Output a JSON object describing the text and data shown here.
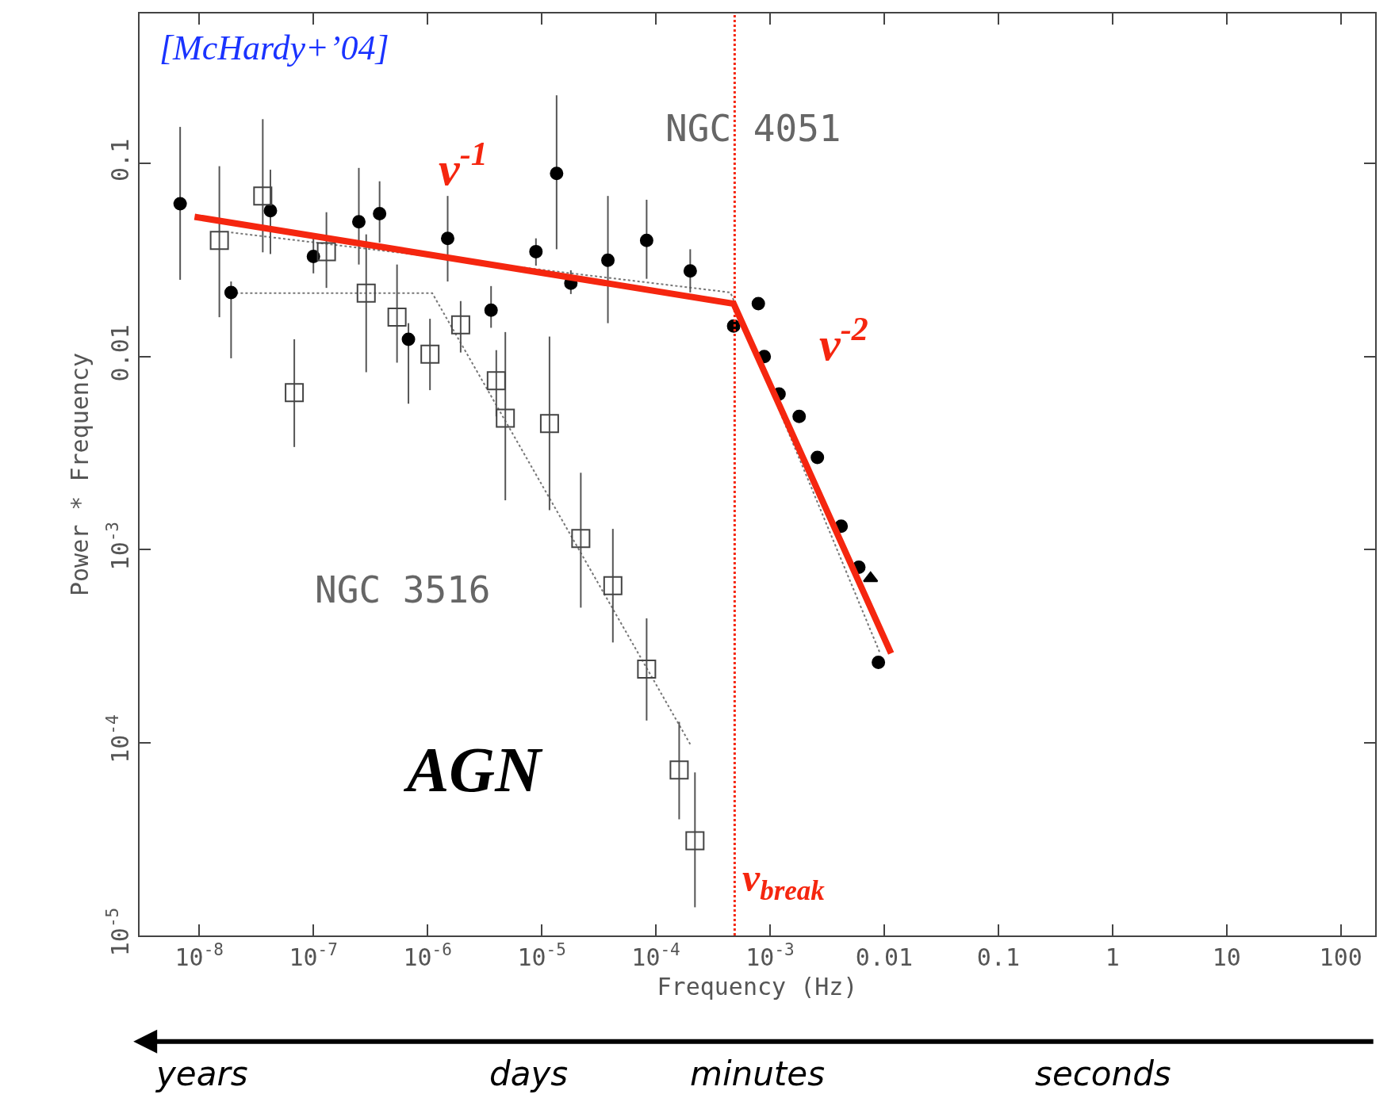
{
  "chart_data": {
    "type": "scatter",
    "xlabel": "Frequency (Hz)",
    "ylabel": "Power * Frequency",
    "log": "xy",
    "xlim": [
      3e-09,
      200
    ],
    "ylim": [
      1e-05,
      0.6
    ],
    "xticks": [
      {
        "value": 1e-08,
        "label": "10$^{-8}$"
      },
      {
        "value": 1e-07,
        "label": "10$^{-7}$"
      },
      {
        "value": 1e-06,
        "label": "10$^{-6}$"
      },
      {
        "value": 1e-05,
        "label": "10$^{-5}$"
      },
      {
        "value": 0.0001,
        "label": "10$^{-4}$"
      },
      {
        "value": 0.001,
        "label": "10$^{-3}$"
      },
      0.01,
      0.1,
      1,
      10,
      100
    ],
    "yticks": [
      {
        "value": 1e-05,
        "label": "10$^{-5}$"
      },
      {
        "value": 0.0001,
        "label": "10$^{-4}$"
      },
      {
        "value": 0.001,
        "label": "10$^{-3}$"
      },
      0.01,
      0.1
    ],
    "series": [
      {
        "type": "line",
        "line_style": "dotted",
        "color": "#777777",
        "marker": "none",
        "x": [
          1.9e-08,
          1.1e-06,
          0.0002
        ],
        "values": [
          0.0213,
          0.0213,
          9.8e-05
        ]
      },
      {
        "type": "line",
        "line_style": "dotted",
        "color": "#777777",
        "marker": "none",
        "x": [
          1.9e-08,
          0.00045,
          0.0091
        ],
        "values": [
          0.044,
          0.0215,
          0.000295
        ]
      },
      {
        "marker": "circle",
        "color": "#000000",
        "x": [
          6.8e-09,
          1.9e-08,
          4.2e-08,
          1e-07,
          2.5e-07,
          3.8e-07,
          6.8e-07,
          1.5e-06,
          3.6e-06,
          8.9e-06,
          1.35e-05,
          1.8e-05,
          3.8e-05,
          8.3e-05,
          0.0002,
          0.00048,
          0.00079,
          0.00089,
          0.0012,
          0.0018,
          0.0026,
          0.0042,
          0.006,
          0.0089
        ],
        "values": [
          0.062,
          0.0215,
          0.057,
          0.033,
          0.05,
          0.055,
          0.0123,
          0.041,
          0.0174,
          0.035,
          0.089,
          0.024,
          0.0316,
          0.04,
          0.0278,
          0.0144,
          0.0188,
          0.01,
          0.0064,
          0.0049,
          0.003,
          0.00132,
          0.00081,
          0.00026
        ],
        "errors": [
          [
            0.025,
            0.155
          ],
          [
            0.0098,
            0.0245
          ],
          [
            0.034,
            0.093
          ],
          [
            0.027,
            0.041
          ],
          [
            0.03,
            0.095
          ],
          [
            0.039,
            0.081
          ],
          [
            0.0057,
            0.0149
          ],
          [
            0.0245,
            0.068
          ],
          [
            0.0141,
            0.0232
          ],
          [
            0.0296,
            0.041
          ],
          [
            0.036,
            0.226
          ],
          [
            0.0211,
            0.028
          ],
          [
            0.0149,
            0.068
          ],
          [
            0.0253,
            0.065
          ],
          [
            0.0215,
            0.036
          ],
          null,
          null,
          null,
          null,
          null,
          null,
          null,
          null,
          null
        ]
      },
      {
        "marker": "triangle",
        "color": "#000000",
        "x": [
          0.0076
        ],
        "values": [
          0.00071
        ]
      },
      {
        "marker": "square",
        "color": "#444444",
        "x": [
          1.5e-08,
          3.6e-08,
          6.8e-08,
          1.3e-07,
          2.9e-07,
          5.4e-07,
          1.05e-06,
          1.95e-06,
          4e-06,
          4.8e-06,
          1.17e-05,
          2.2e-05,
          4.2e-05,
          8.3e-05,
          0.00016,
          0.00022
        ],
        "values": [
          0.04,
          0.068,
          0.0065,
          0.035,
          0.0213,
          0.016,
          0.0103,
          0.0146,
          0.0075,
          0.0048,
          0.0045,
          0.00114,
          0.00065,
          0.00024,
          7.2e-05,
          3.1e-05
        ],
        "errors": [
          [
            0.016,
            0.097
          ],
          [
            0.0347,
            0.17
          ],
          [
            0.0034,
            0.0123
          ],
          [
            0.0227,
            0.056
          ],
          [
            0.0083,
            0.043
          ],
          [
            0.0093,
            0.03
          ],
          [
            0.0067,
            0.0157
          ],
          [
            0.0105,
            0.0194
          ],
          [
            0.0049,
            0.0108
          ],
          [
            0.0018,
            0.0134
          ],
          [
            0.0016,
            0.0127
          ],
          [
            0.0005,
            0.0025
          ],
          [
            0.00033,
            0.00128
          ],
          [
            0.00013,
            0.00044
          ],
          [
            4e-05,
            0.000128
          ],
          [
            1.4e-05,
            7e-05
          ]
        ]
      },
      {
        "type": "line",
        "line_style": "solid",
        "color": "#f5260f",
        "marker": "none",
        "x": [
          9.1e-09,
          0.00048,
          0.0115
        ],
        "values": [
          0.053,
          0.0188,
          0.00029
        ]
      }
    ],
    "ref_lines": [
      {
        "axis": "x",
        "value": 0.00049,
        "label": "ν$_{break}$",
        "color": "#f5260f",
        "line_style": "dotted"
      }
    ],
    "annotations": [
      "[McHardy+’04]",
      "NGC 4051",
      "NGC 3516",
      "AGN",
      "ν$^{-1}$",
      "ν$^{-2}$",
      "years",
      "days",
      "minutes",
      "seconds"
    ]
  }
}
